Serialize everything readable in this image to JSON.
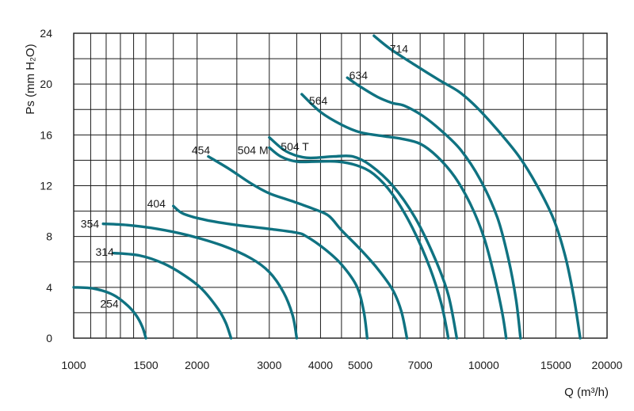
{
  "chart_data": {
    "type": "line",
    "x_scale": "log",
    "xlim": [
      1000,
      20000
    ],
    "ylim": [
      0,
      24
    ],
    "x_ticks": [
      1000,
      1500,
      2000,
      3000,
      4000,
      5000,
      7000,
      10000,
      15000,
      20000
    ],
    "x_tick_labels": [
      "1000",
      "1500",
      "2000",
      "3000",
      "4000",
      "5000",
      "7000",
      "10000",
      "15000",
      "20000"
    ],
    "x_grid": [
      1000,
      1100,
      1200,
      1300,
      1400,
      1500,
      1750,
      2000,
      2500,
      3000,
      3500,
      4000,
      4500,
      5000,
      6000,
      7000,
      8000,
      9000,
      10000,
      12500,
      15000,
      17500,
      20000
    ],
    "y_ticks": [
      0,
      4,
      8,
      12,
      16,
      20,
      24
    ],
    "y_tick_labels": [
      "0",
      "4",
      "8",
      "12",
      "16",
      "20",
      "24"
    ],
    "y_grid_step": 2,
    "grid": true,
    "xlabel": "Q (m³/h)",
    "ylabel": "Ps (mm H₂O)",
    "line_color": "#0f7281",
    "series": [
      {
        "name": "254",
        "points": [
          [
            1000,
            4.0
          ],
          [
            1120,
            3.9
          ],
          [
            1250,
            3.4
          ],
          [
            1350,
            2.6
          ],
          [
            1420,
            1.8
          ],
          [
            1470,
            0.9
          ],
          [
            1500,
            0.0
          ]
        ]
      },
      {
        "name": "314",
        "points": [
          [
            1250,
            6.7
          ],
          [
            1450,
            6.5
          ],
          [
            1650,
            5.9
          ],
          [
            1850,
            5.0
          ],
          [
            2050,
            3.9
          ],
          [
            2250,
            2.3
          ],
          [
            2350,
            1.2
          ],
          [
            2420,
            0.0
          ]
        ]
      },
      {
        "name": "354",
        "points": [
          [
            1180,
            9.0
          ],
          [
            1350,
            8.9
          ],
          [
            1600,
            8.6
          ],
          [
            1900,
            8.1
          ],
          [
            2300,
            7.3
          ],
          [
            2700,
            6.3
          ],
          [
            3000,
            5.2
          ],
          [
            3250,
            3.6
          ],
          [
            3420,
            1.8
          ],
          [
            3500,
            0.0
          ]
        ]
      },
      {
        "name": "404",
        "points": [
          [
            1750,
            10.4
          ],
          [
            1850,
            9.8
          ],
          [
            2100,
            9.3
          ],
          [
            2500,
            8.9
          ],
          [
            3000,
            8.6
          ],
          [
            3500,
            8.3
          ],
          [
            3700,
            8.0
          ],
          [
            4100,
            7.0
          ],
          [
            4500,
            5.8
          ],
          [
            4900,
            4.1
          ],
          [
            5100,
            2.1
          ],
          [
            5200,
            0.0
          ]
        ]
      },
      {
        "name": "454",
        "points": [
          [
            2130,
            14.3
          ],
          [
            2400,
            13.3
          ],
          [
            2700,
            12.2
          ],
          [
            3000,
            11.4
          ],
          [
            3400,
            10.8
          ],
          [
            3900,
            10.1
          ],
          [
            4200,
            9.6
          ],
          [
            4500,
            8.5
          ],
          [
            5000,
            7.0
          ],
          [
            5500,
            5.5
          ],
          [
            6000,
            3.8
          ],
          [
            6300,
            2.1
          ],
          [
            6500,
            0.0
          ]
        ]
      },
      {
        "name": "504 M",
        "points": [
          [
            3000,
            15.0
          ],
          [
            3200,
            14.3
          ],
          [
            3500,
            13.9
          ],
          [
            3900,
            13.9
          ],
          [
            4400,
            13.9
          ],
          [
            4900,
            13.6
          ],
          [
            5400,
            12.9
          ],
          [
            6000,
            11.3
          ],
          [
            6700,
            8.7
          ],
          [
            7400,
            5.5
          ],
          [
            7900,
            2.6
          ],
          [
            8200,
            0.0
          ]
        ]
      },
      {
        "name": "504 T",
        "points": [
          [
            3000,
            15.8
          ],
          [
            3300,
            14.7
          ],
          [
            3700,
            14.2
          ],
          [
            4300,
            14.3
          ],
          [
            4800,
            14.3
          ],
          [
            5300,
            13.6
          ],
          [
            6000,
            12.0
          ],
          [
            6800,
            9.5
          ],
          [
            7600,
            6.3
          ],
          [
            8200,
            3.4
          ],
          [
            8600,
            0.0
          ]
        ]
      },
      {
        "name": "564",
        "points": [
          [
            3600,
            19.2
          ],
          [
            4000,
            17.8
          ],
          [
            4500,
            16.8
          ],
          [
            5000,
            16.2
          ],
          [
            5700,
            15.9
          ],
          [
            6300,
            15.7
          ],
          [
            7000,
            15.3
          ],
          [
            7700,
            14.3
          ],
          [
            8500,
            12.7
          ],
          [
            9300,
            10.5
          ],
          [
            10000,
            8.0
          ],
          [
            10600,
            5.0
          ],
          [
            11100,
            2.0
          ],
          [
            11350,
            0.0
          ]
        ]
      },
      {
        "name": "634",
        "points": [
          [
            4650,
            20.5
          ],
          [
            5000,
            19.8
          ],
          [
            5500,
            19.0
          ],
          [
            6000,
            18.5
          ],
          [
            6400,
            18.3
          ],
          [
            7100,
            17.5
          ],
          [
            7900,
            16.3
          ],
          [
            8800,
            14.8
          ],
          [
            9800,
            12.5
          ],
          [
            10800,
            9.5
          ],
          [
            11500,
            6.2
          ],
          [
            12000,
            3.0
          ],
          [
            12300,
            0.0
          ]
        ]
      },
      {
        "name": "714",
        "points": [
          [
            5400,
            23.8
          ],
          [
            5900,
            22.8
          ],
          [
            6800,
            21.5
          ],
          [
            7800,
            20.3
          ],
          [
            8700,
            19.4
          ],
          [
            9600,
            18.2
          ],
          [
            10800,
            16.4
          ],
          [
            12200,
            14.3
          ],
          [
            13500,
            12.0
          ],
          [
            14800,
            9.4
          ],
          [
            15800,
            6.5
          ],
          [
            16600,
            3.2
          ],
          [
            17200,
            0.0
          ]
        ]
      }
    ],
    "labels": [
      {
        "text": "254",
        "x": 1160,
        "y": 2.7
      },
      {
        "text": "314",
        "x": 1130,
        "y": 6.8
      },
      {
        "text": "354",
        "x": 1040,
        "y": 9.0
      },
      {
        "text": "404",
        "x": 1510,
        "y": 10.6
      },
      {
        "text": "454",
        "x": 1940,
        "y": 14.8
      },
      {
        "text": "504 M",
        "x": 2510,
        "y": 14.8
      },
      {
        "text": "504 T",
        "x": 3200,
        "y": 15.1
      },
      {
        "text": "564",
        "x": 3750,
        "y": 18.7
      },
      {
        "text": "634",
        "x": 4700,
        "y": 20.7
      },
      {
        "text": "714",
        "x": 5900,
        "y": 22.8
      }
    ]
  }
}
